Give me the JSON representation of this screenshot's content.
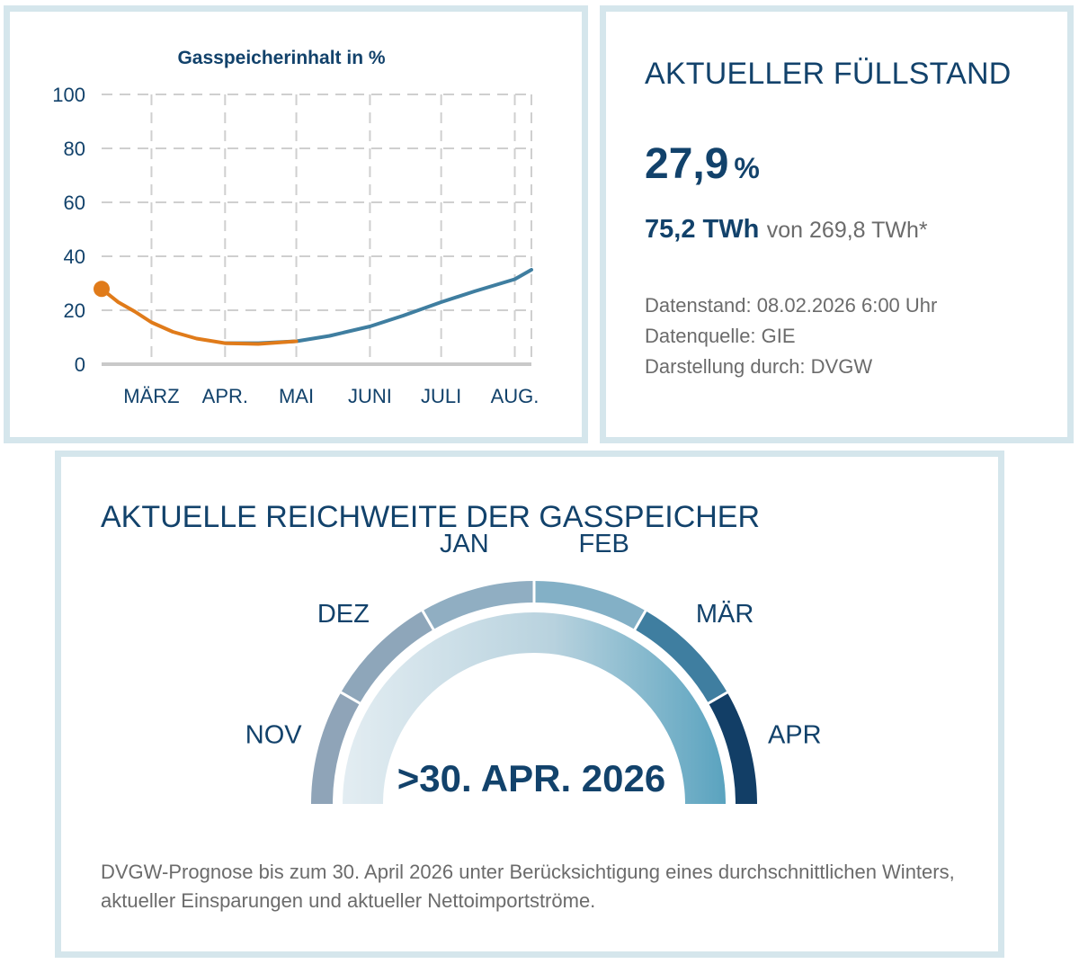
{
  "chart_card": {
    "chart_data": {
      "type": "line",
      "title": "Gasspeicherinhalt in %",
      "xlabel": "",
      "ylabel": "",
      "ylim": [
        0,
        100
      ],
      "yticks": [
        0,
        20,
        40,
        60,
        80,
        100
      ],
      "xlim": [
        "2026-02-08",
        "2026-08-08"
      ],
      "month_ticks": [
        {
          "label": "MÄRZ",
          "date": "2026-03-01"
        },
        {
          "label": "APR.",
          "date": "2026-04-01"
        },
        {
          "label": "MAI",
          "date": "2026-05-01"
        },
        {
          "label": "JUNI",
          "date": "2026-06-01"
        },
        {
          "label": "JULI",
          "date": "2026-07-01"
        },
        {
          "label": "AUG.",
          "date": "2026-08-01"
        }
      ],
      "grid": true,
      "series": [
        {
          "color": "#e07b1a",
          "x": [
            "2026-02-08",
            "2026-02-15",
            "2026-02-22",
            "2026-03-01",
            "2026-03-10",
            "2026-03-20",
            "2026-04-01",
            "2026-04-15",
            "2026-05-01"
          ],
          "values": [
            27.9,
            23,
            19.5,
            15.5,
            12,
            9.5,
            7.8,
            7.5,
            8.5
          ]
        },
        {
          "color": "#3f7ea0",
          "x": [
            "2026-04-01",
            "2026-04-15",
            "2026-05-01",
            "2026-05-15",
            "2026-06-01",
            "2026-06-15",
            "2026-07-01",
            "2026-07-15",
            "2026-08-01",
            "2026-08-08"
          ],
          "values": [
            7.8,
            7.8,
            8.5,
            10.5,
            14,
            18,
            23,
            27,
            31.5,
            35
          ]
        }
      ],
      "current_point": {
        "x": "2026-02-08",
        "value": 27.9,
        "color": "#e07b1a"
      }
    }
  },
  "level_card": {
    "heading": "AKTUELLER FÜLLSTAND",
    "percent_value": "27,9",
    "percent_unit": "%",
    "twh_value": "75,2 TWh",
    "twh_rest": "von 269,8 TWh*",
    "meta": [
      "Datenstand: 08.02.2026 6:00 Uhr",
      "Datenquelle: GIE",
      "Darstellung durch: DVGW"
    ]
  },
  "range_card": {
    "heading": "AKTUELLE REICHWEITE DER GASSPEICHER",
    "gauge_months": [
      "NOV",
      "DEZ",
      "JAN",
      "FEB",
      "MÄR",
      "APR"
    ],
    "result": ">30. APR. 2026",
    "gauge_colors": {
      "segments": [
        "#8fa4b8",
        "#8ea6ba",
        "#90aec2",
        "#83b0c6",
        "#3f7ea0",
        "#123e66"
      ],
      "inner_start": "#e3edf2",
      "inner_end": "#5aa3bf"
    },
    "note": "DVGW-Prognose bis zum 30. April 2026 unter Berücksichtigung eines durchschnittlichen Winters, aktueller Einsparungen und aktueller Nettoimportströme."
  }
}
